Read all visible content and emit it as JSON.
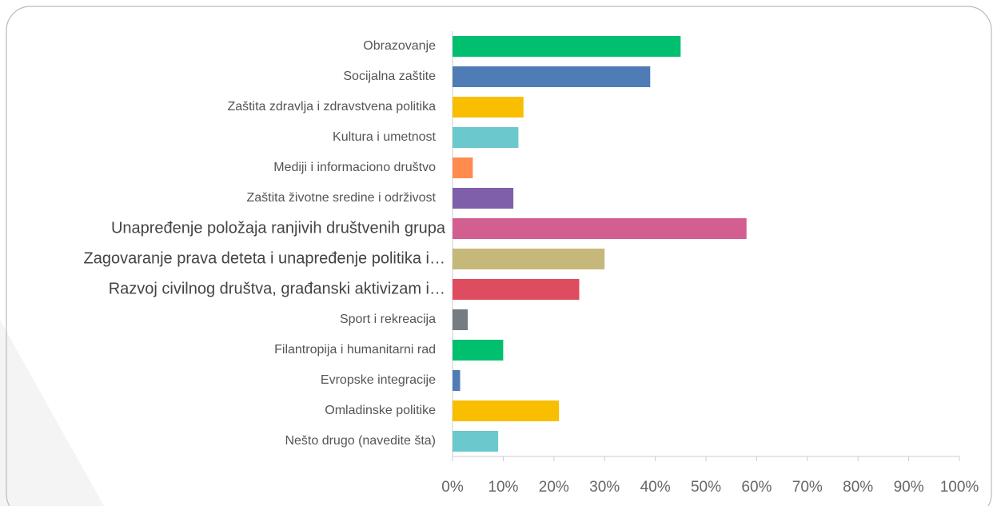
{
  "chart_data": {
    "type": "barh",
    "categories": [
      "Obrazovanje",
      "Socijalna zaštite",
      "Zaštita zdravlja i zdravstvena politika",
      "Kultura i umetnost",
      "Mediji i informaciono društvo",
      "Zaštita životne sredine i održivost",
      "Unapređenje položaja ranjivih društvenih grupa",
      "Zagovaranje prava deteta i unapređenje politika i…",
      "Razvoj civilnog društva, građanski aktivizam i…",
      "Sport i rekreacija",
      "Filantropija i humanitarni rad",
      "Evropske integracije",
      "Omladinske politike",
      "Nešto drugo (navedite šta)"
    ],
    "values": [
      45,
      39,
      14,
      13,
      4,
      12,
      58,
      30,
      25,
      3,
      10,
      1.5,
      21,
      9
    ],
    "colors": [
      "#00bf6f",
      "#507cb6",
      "#f9be00",
      "#6bc8cd",
      "#ff8b4f",
      "#7f5fa9",
      "#d25f90",
      "#c5b87a",
      "#de4d5f",
      "#757d82",
      "#00bf6f",
      "#507cb6",
      "#f9be00",
      "#6bc8cd"
    ],
    "xlim": [
      0,
      100
    ],
    "xticks": [
      {
        "value": 0,
        "label": "0%"
      },
      {
        "value": 10,
        "label": "10%"
      },
      {
        "value": 20,
        "label": "20%"
      },
      {
        "value": 30,
        "label": "30%"
      },
      {
        "value": 40,
        "label": "40%"
      },
      {
        "value": 50,
        "label": "50%"
      },
      {
        "value": 60,
        "label": "60%"
      },
      {
        "value": 70,
        "label": "70%"
      },
      {
        "value": 80,
        "label": "80%"
      },
      {
        "value": 90,
        "label": "90%"
      },
      {
        "value": 100,
        "label": "100%"
      }
    ],
    "grid": false
  }
}
